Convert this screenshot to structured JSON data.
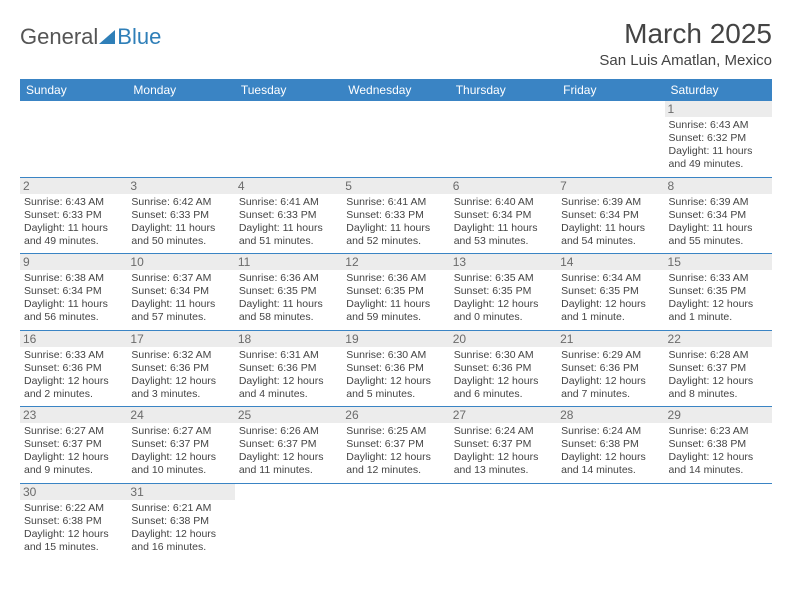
{
  "brand": {
    "part1": "General",
    "part2": "Blue"
  },
  "title": "March 2025",
  "location": "San Luis Amatlan, Mexico",
  "colors": {
    "header_bg": "#3a84c4",
    "header_text": "#ffffff",
    "daynum_bg": "#ececec",
    "daynum_text": "#6b6b6b",
    "border": "#3a84c4",
    "brand_blue": "#2f7fb8"
  },
  "font_sizes": {
    "title": 28,
    "subtitle": 15,
    "dayhead": 12,
    "daynum": 12,
    "info": 10.5
  },
  "day_names": [
    "Sunday",
    "Monday",
    "Tuesday",
    "Wednesday",
    "Thursday",
    "Friday",
    "Saturday"
  ],
  "weeks": [
    [
      null,
      null,
      null,
      null,
      null,
      null,
      {
        "d": "1",
        "sr": "6:43 AM",
        "ss": "6:32 PM",
        "dl": "11 hours and 49 minutes."
      }
    ],
    [
      {
        "d": "2",
        "sr": "6:43 AM",
        "ss": "6:33 PM",
        "dl": "11 hours and 49 minutes."
      },
      {
        "d": "3",
        "sr": "6:42 AM",
        "ss": "6:33 PM",
        "dl": "11 hours and 50 minutes."
      },
      {
        "d": "4",
        "sr": "6:41 AM",
        "ss": "6:33 PM",
        "dl": "11 hours and 51 minutes."
      },
      {
        "d": "5",
        "sr": "6:41 AM",
        "ss": "6:33 PM",
        "dl": "11 hours and 52 minutes."
      },
      {
        "d": "6",
        "sr": "6:40 AM",
        "ss": "6:34 PM",
        "dl": "11 hours and 53 minutes."
      },
      {
        "d": "7",
        "sr": "6:39 AM",
        "ss": "6:34 PM",
        "dl": "11 hours and 54 minutes."
      },
      {
        "d": "8",
        "sr": "6:39 AM",
        "ss": "6:34 PM",
        "dl": "11 hours and 55 minutes."
      }
    ],
    [
      {
        "d": "9",
        "sr": "6:38 AM",
        "ss": "6:34 PM",
        "dl": "11 hours and 56 minutes."
      },
      {
        "d": "10",
        "sr": "6:37 AM",
        "ss": "6:34 PM",
        "dl": "11 hours and 57 minutes."
      },
      {
        "d": "11",
        "sr": "6:36 AM",
        "ss": "6:35 PM",
        "dl": "11 hours and 58 minutes."
      },
      {
        "d": "12",
        "sr": "6:36 AM",
        "ss": "6:35 PM",
        "dl": "11 hours and 59 minutes."
      },
      {
        "d": "13",
        "sr": "6:35 AM",
        "ss": "6:35 PM",
        "dl": "12 hours and 0 minutes."
      },
      {
        "d": "14",
        "sr": "6:34 AM",
        "ss": "6:35 PM",
        "dl": "12 hours and 1 minute."
      },
      {
        "d": "15",
        "sr": "6:33 AM",
        "ss": "6:35 PM",
        "dl": "12 hours and 1 minute."
      }
    ],
    [
      {
        "d": "16",
        "sr": "6:33 AM",
        "ss": "6:36 PM",
        "dl": "12 hours and 2 minutes."
      },
      {
        "d": "17",
        "sr": "6:32 AM",
        "ss": "6:36 PM",
        "dl": "12 hours and 3 minutes."
      },
      {
        "d": "18",
        "sr": "6:31 AM",
        "ss": "6:36 PM",
        "dl": "12 hours and 4 minutes."
      },
      {
        "d": "19",
        "sr": "6:30 AM",
        "ss": "6:36 PM",
        "dl": "12 hours and 5 minutes."
      },
      {
        "d": "20",
        "sr": "6:30 AM",
        "ss": "6:36 PM",
        "dl": "12 hours and 6 minutes."
      },
      {
        "d": "21",
        "sr": "6:29 AM",
        "ss": "6:36 PM",
        "dl": "12 hours and 7 minutes."
      },
      {
        "d": "22",
        "sr": "6:28 AM",
        "ss": "6:37 PM",
        "dl": "12 hours and 8 minutes."
      }
    ],
    [
      {
        "d": "23",
        "sr": "6:27 AM",
        "ss": "6:37 PM",
        "dl": "12 hours and 9 minutes."
      },
      {
        "d": "24",
        "sr": "6:27 AM",
        "ss": "6:37 PM",
        "dl": "12 hours and 10 minutes."
      },
      {
        "d": "25",
        "sr": "6:26 AM",
        "ss": "6:37 PM",
        "dl": "12 hours and 11 minutes."
      },
      {
        "d": "26",
        "sr": "6:25 AM",
        "ss": "6:37 PM",
        "dl": "12 hours and 12 minutes."
      },
      {
        "d": "27",
        "sr": "6:24 AM",
        "ss": "6:37 PM",
        "dl": "12 hours and 13 minutes."
      },
      {
        "d": "28",
        "sr": "6:24 AM",
        "ss": "6:38 PM",
        "dl": "12 hours and 14 minutes."
      },
      {
        "d": "29",
        "sr": "6:23 AM",
        "ss": "6:38 PM",
        "dl": "12 hours and 14 minutes."
      }
    ],
    [
      {
        "d": "30",
        "sr": "6:22 AM",
        "ss": "6:38 PM",
        "dl": "12 hours and 15 minutes."
      },
      {
        "d": "31",
        "sr": "6:21 AM",
        "ss": "6:38 PM",
        "dl": "12 hours and 16 minutes."
      },
      null,
      null,
      null,
      null,
      null
    ]
  ],
  "labels": {
    "sunrise": "Sunrise:",
    "sunset": "Sunset:",
    "daylight": "Daylight:"
  }
}
